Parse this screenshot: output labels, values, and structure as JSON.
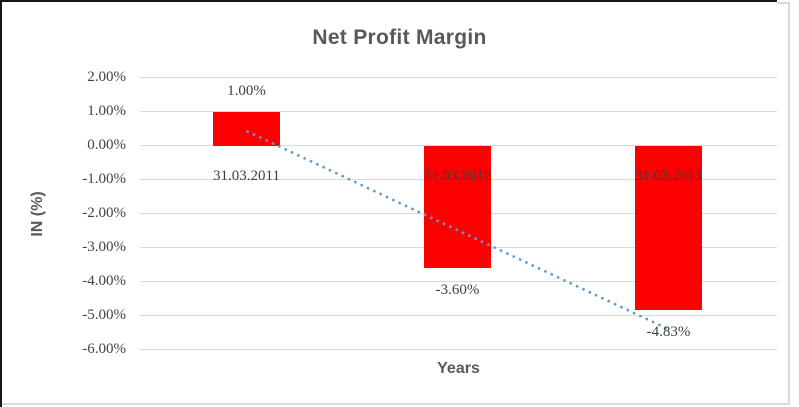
{
  "chart_data": {
    "type": "bar",
    "title": "Net Profit Margin",
    "xlabel": "Years",
    "ylabel": "IN (%)",
    "categories": [
      "31.03.2011",
      "31.03.2012",
      "31.03.2013"
    ],
    "values": [
      1.0,
      -3.6,
      -4.83
    ],
    "data_labels": [
      "1.00%",
      "-3.60%",
      "-4.83%"
    ],
    "y_ticks": [
      "2.00%",
      "1.00%",
      "0.00%",
      "-1.00%",
      "-2.00%",
      "-3.00%",
      "-4.00%",
      "-5.00%",
      "-6.00%"
    ],
    "ylim": [
      -6,
      2
    ],
    "grid": true,
    "legend": "none",
    "bar_color": "#FF0000",
    "gridline_color": "#D9D9D9",
    "text_color": "#595959",
    "trendline": {
      "type": "linear",
      "style": "dotted",
      "color": "#5B9BD5",
      "start_value": 0.44,
      "end_value": -5.39
    }
  }
}
